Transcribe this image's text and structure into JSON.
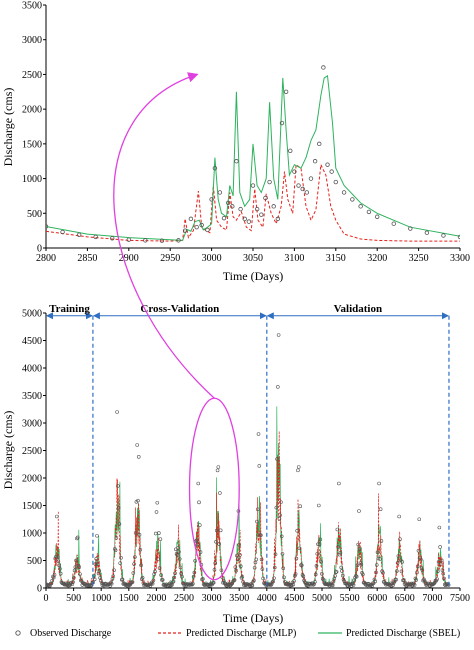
{
  "colors": {
    "observed": "#555555",
    "mlp": "#e8201a",
    "sbel": "#2db35d",
    "segment_arrow": "#2f6fc2",
    "highlight": "#e040e0"
  },
  "chart_data": [
    {
      "type": "line",
      "panel": "top",
      "xlabel": "Time (Days)",
      "ylabel": "Discharge (cms)",
      "xlim": [
        2800,
        3300
      ],
      "ylim": [
        0,
        3500
      ],
      "x_ticks": [
        "2800",
        "2850",
        "2900",
        "2950",
        "3000",
        "3050",
        "3100",
        "3150",
        "3200",
        "3250",
        "3300"
      ],
      "y_ticks": [
        "0",
        "500",
        "1000",
        "1500",
        "2000",
        "2500",
        "3000",
        "3500"
      ],
      "series": [
        {
          "name": "Observed Discharge",
          "style": "markers",
          "x": [
            2800,
            2820,
            2840,
            2860,
            2880,
            2900,
            2920,
            2940,
            2960,
            2968,
            2975,
            2982,
            2988,
            2995,
            3000,
            3004,
            3010,
            3015,
            3020,
            3025,
            3030,
            3035,
            3040,
            3045,
            3050,
            3055,
            3060,
            3065,
            3070,
            3075,
            3080,
            3085,
            3090,
            3095,
            3100,
            3105,
            3110,
            3115,
            3120,
            3125,
            3130,
            3135,
            3140,
            3145,
            3150,
            3160,
            3170,
            3180,
            3190,
            3200,
            3220,
            3240,
            3260,
            3280,
            3300
          ],
          "y": [
            310,
            230,
            190,
            160,
            140,
            120,
            110,
            105,
            110,
            250,
            420,
            300,
            330,
            260,
            700,
            1150,
            800,
            430,
            650,
            600,
            1250,
            560,
            420,
            380,
            900,
            560,
            480,
            720,
            950,
            600,
            420,
            1800,
            2250,
            1400,
            1100,
            900,
            850,
            800,
            1000,
            1250,
            1500,
            2600,
            1200,
            1100,
            950,
            800,
            700,
            600,
            520,
            450,
            350,
            280,
            220,
            180,
            160
          ]
        },
        {
          "name": "Predicted Discharge (MLP)",
          "style": "dashed",
          "x": [
            2800,
            2850,
            2900,
            2950,
            2965,
            2968,
            2972,
            2978,
            2984,
            2988,
            2992,
            2998,
            3002,
            3006,
            3012,
            3018,
            3022,
            3026,
            3030,
            3036,
            3042,
            3048,
            3052,
            3056,
            3062,
            3066,
            3072,
            3078,
            3084,
            3088,
            3092,
            3098,
            3102,
            3108,
            3114,
            3120,
            3126,
            3132,
            3138,
            3144,
            3150,
            3160,
            3180,
            3200,
            3240,
            3300
          ],
          "y": [
            240,
            160,
            110,
            100,
            110,
            420,
            150,
            250,
            820,
            300,
            260,
            220,
            900,
            400,
            300,
            260,
            800,
            450,
            400,
            520,
            300,
            250,
            850,
            400,
            300,
            780,
            500,
            350,
            600,
            1100,
            700,
            500,
            1200,
            1150,
            600,
            400,
            550,
            1200,
            1050,
            600,
            400,
            200,
            130,
            110,
            100,
            100
          ]
        },
        {
          "name": "Predicted Discharge (SBEL)",
          "style": "solid",
          "x": [
            2800,
            2850,
            2900,
            2950,
            2965,
            2970,
            2975,
            2980,
            2985,
            2990,
            2995,
            3000,
            3004,
            3008,
            3012,
            3018,
            3022,
            3026,
            3030,
            3034,
            3040,
            3046,
            3050,
            3055,
            3060,
            3066,
            3070,
            3075,
            3080,
            3086,
            3090,
            3094,
            3100,
            3108,
            3114,
            3120,
            3126,
            3132,
            3136,
            3140,
            3146,
            3150,
            3160,
            3180,
            3200,
            3240,
            3300
          ],
          "y": [
            310,
            200,
            150,
            120,
            110,
            270,
            240,
            380,
            400,
            260,
            300,
            350,
            1300,
            700,
            500,
            450,
            900,
            750,
            2250,
            800,
            600,
            700,
            1500,
            900,
            800,
            1000,
            2100,
            1000,
            700,
            2450,
            1700,
            1050,
            1200,
            1150,
            1300,
            1550,
            1700,
            2200,
            2450,
            2480,
            1800,
            1150,
            900,
            650,
            500,
            300,
            170
          ]
        }
      ],
      "annotation": {
        "arrow_to_x": 2990,
        "arrow_to_y": 2500
      }
    },
    {
      "type": "line",
      "panel": "bottom",
      "xlabel": "Time (Days)",
      "ylabel": "Discharge (cms)",
      "xlim": [
        0,
        7500
      ],
      "ylim": [
        0,
        5000
      ],
      "x_ticks": [
        "0",
        "500",
        "1000",
        "1500",
        "2000",
        "2500",
        "3000",
        "3500",
        "4000",
        "4500",
        "5000",
        "5500",
        "6000",
        "6500",
        "7000",
        "7500"
      ],
      "y_ticks": [
        "0",
        "500",
        "1000",
        "1500",
        "2000",
        "2500",
        "3000",
        "3500",
        "4000",
        "4500",
        "5000"
      ],
      "segments": [
        {
          "label": "Training",
          "from": 0,
          "to": 850
        },
        {
          "label": "Cross-Validation",
          "from": 850,
          "to": 4000
        },
        {
          "label": "Validation",
          "from": 4000,
          "to": 7300
        }
      ],
      "period_days": 365,
      "peak_values": [
        1300,
        900,
        950,
        3200,
        2600,
        1550,
        1300,
        1900,
        2200,
        1400,
        2800,
        4600,
        2200,
        1500,
        1900,
        1400,
        1900,
        1300,
        1250,
        1100,
        1300,
        1100
      ],
      "highlight_ellipse": {
        "center_x": 3050,
        "center_y": 1800,
        "x_radius": 450,
        "y_radius": 1650
      },
      "series": [
        {
          "name": "Observed Discharge",
          "style": "markers"
        },
        {
          "name": "Predicted Discharge (MLP)",
          "style": "dashed"
        },
        {
          "name": "Predicted Discharge (SBEL)",
          "style": "solid"
        }
      ]
    }
  ],
  "legend": [
    {
      "label": "Observed Discharge",
      "style": "markers"
    },
    {
      "label": "Predicted Discharge (MLP)",
      "style": "dashed"
    },
    {
      "label": "Predicted Discharge (SBEL)",
      "style": "solid"
    }
  ]
}
